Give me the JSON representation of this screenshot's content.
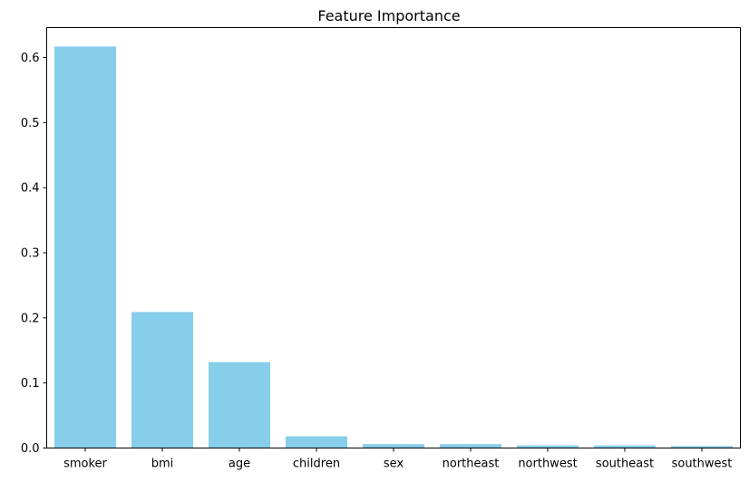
{
  "chart_data": {
    "type": "bar",
    "title": "Feature Importance",
    "xlabel": "",
    "ylabel": "",
    "categories": [
      "smoker",
      "bmi",
      "age",
      "children",
      "sex",
      "northeast",
      "northwest",
      "southeast",
      "southwest"
    ],
    "values": [
      0.617,
      0.209,
      0.132,
      0.018,
      0.006,
      0.006,
      0.004,
      0.004,
      0.003
    ],
    "ylim": [
      0,
      0.646
    ],
    "yticks": [
      0.0,
      0.1,
      0.2,
      0.3,
      0.4,
      0.5,
      0.6
    ],
    "ytick_labels": [
      "0.0",
      "0.1",
      "0.2",
      "0.3",
      "0.4",
      "0.5",
      "0.6"
    ],
    "grid": false,
    "legend": "none",
    "bar_color": "#87CEEB",
    "axis_color": "#000000"
  }
}
